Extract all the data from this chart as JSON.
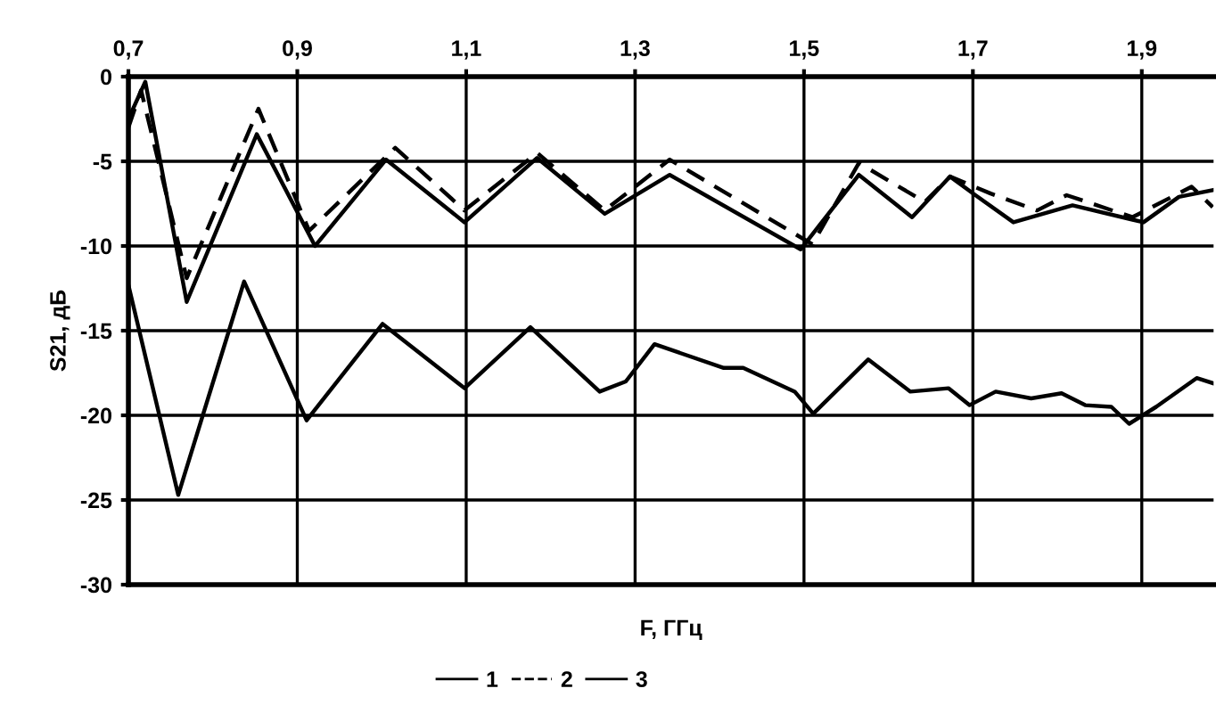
{
  "chart_data": {
    "type": "line",
    "xlabel": "F, ГГц",
    "ylabel": "S21, дБ",
    "xlim": [
      0.7,
      1.985
    ],
    "xticks": [
      {
        "value": 0.7,
        "label": "0,7"
      },
      {
        "value": 0.9,
        "label": "0,9"
      },
      {
        "value": 1.1,
        "label": "1,1"
      },
      {
        "value": 1.3,
        "label": "1,3"
      },
      {
        "value": 1.5,
        "label": "1,5"
      },
      {
        "value": 1.7,
        "label": "1,7"
      },
      {
        "value": 1.9,
        "label": "1,9"
      }
    ],
    "ylim": [
      -30,
      0
    ],
    "yticks": [
      0,
      -5,
      -10,
      -15,
      -20,
      -25,
      -30
    ],
    "grid": true,
    "legend": "bottom",
    "series": [
      {
        "name": "1",
        "color": "#000000",
        "line_style": "solid",
        "x": [
          0.7,
          0.72,
          0.769,
          0.852,
          0.921,
          1.005,
          1.098,
          1.184,
          1.264,
          1.341,
          1.496,
          1.565,
          1.628,
          1.673,
          1.703,
          1.748,
          1.818,
          1.902,
          1.944,
          1.984
        ],
        "values": [
          -2.5,
          -0.3,
          -13.3,
          -3.4,
          -10.0,
          -4.9,
          -8.6,
          -4.8,
          -8.1,
          -5.8,
          -10.2,
          -5.8,
          -8.3,
          -5.9,
          -7.0,
          -8.6,
          -7.6,
          -8.6,
          -7.1,
          -6.7
        ]
      },
      {
        "name": "2",
        "color": "#000000",
        "line_style": "dashed",
        "x": [
          0.7,
          0.715,
          0.769,
          0.854,
          0.914,
          1.016,
          1.098,
          1.184,
          1.264,
          1.341,
          1.51,
          1.565,
          1.643,
          1.673,
          1.721,
          1.776,
          1.811,
          1.889,
          1.959,
          1.984
        ],
        "values": [
          -3.0,
          -0.8,
          -11.9,
          -1.9,
          -9.1,
          -4.2,
          -7.9,
          -4.5,
          -7.9,
          -4.9,
          -9.9,
          -5.1,
          -7.4,
          -5.9,
          -6.9,
          -7.9,
          -7.0,
          -8.3,
          -6.5,
          -7.7
        ]
      },
      {
        "name": "3",
        "color": "#000000",
        "line_style": "solid",
        "x": [
          0.7,
          0.759,
          0.837,
          0.911,
          1.001,
          1.098,
          1.176,
          1.258,
          1.289,
          1.323,
          1.405,
          1.428,
          1.489,
          1.511,
          1.576,
          1.626,
          1.671,
          1.696,
          1.727,
          1.769,
          1.805,
          1.833,
          1.864,
          1.885,
          1.917,
          1.965,
          1.984
        ],
        "values": [
          -12.3,
          -24.7,
          -12.1,
          -20.3,
          -14.6,
          -18.4,
          -14.8,
          -18.6,
          -18.0,
          -15.8,
          -17.2,
          -17.2,
          -18.6,
          -19.9,
          -16.7,
          -18.6,
          -18.4,
          -19.4,
          -18.6,
          -19.0,
          -18.7,
          -19.4,
          -19.5,
          -20.5,
          -19.5,
          -17.8,
          -18.1
        ]
      }
    ]
  }
}
